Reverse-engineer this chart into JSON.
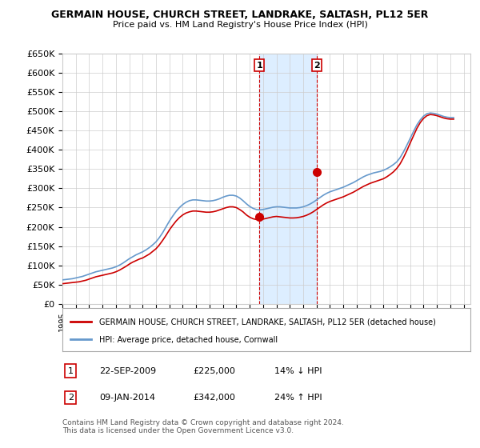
{
  "title": "GERMAIN HOUSE, CHURCH STREET, LANDRAKE, SALTASH, PL12 5ER",
  "subtitle": "Price paid vs. HM Land Registry's House Price Index (HPI)",
  "ylim": [
    0,
    650000
  ],
  "yticks": [
    0,
    50000,
    100000,
    150000,
    200000,
    250000,
    300000,
    350000,
    400000,
    450000,
    500000,
    550000,
    600000,
    650000
  ],
  "ytick_labels": [
    "£0",
    "£50K",
    "£100K",
    "£150K",
    "£200K",
    "£250K",
    "£300K",
    "£350K",
    "£400K",
    "£450K",
    "£500K",
    "£550K",
    "£600K",
    "£650K"
  ],
  "xlim_start": 1995.0,
  "xlim_end": 2025.5,
  "point1_x": 2009.72,
  "point1_y": 225000,
  "point1_label": "1",
  "point1_date": "22-SEP-2009",
  "point1_price": "£225,000",
  "point1_hpi": "14% ↓ HPI",
  "point2_x": 2014.02,
  "point2_y": 342000,
  "point2_label": "2",
  "point2_date": "09-JAN-2014",
  "point2_price": "£342,000",
  "point2_hpi": "24% ↑ HPI",
  "red_line_color": "#cc0000",
  "blue_line_color": "#6699cc",
  "shade_color": "#ddeeff",
  "grid_color": "#cccccc",
  "background_color": "#ffffff",
  "legend_label_red": "GERMAIN HOUSE, CHURCH STREET, LANDRAKE, SALTASH, PL12 5ER (detached house)",
  "legend_label_blue": "HPI: Average price, detached house, Cornwall",
  "footer_text": "Contains HM Land Registry data © Crown copyright and database right 2024.\nThis data is licensed under the Open Government Licence v3.0.",
  "hpi_years": [
    1995.0,
    1995.25,
    1995.5,
    1995.75,
    1996.0,
    1996.25,
    1996.5,
    1996.75,
    1997.0,
    1997.25,
    1997.5,
    1997.75,
    1998.0,
    1998.25,
    1998.5,
    1998.75,
    1999.0,
    1999.25,
    1999.5,
    1999.75,
    2000.0,
    2000.25,
    2000.5,
    2000.75,
    2001.0,
    2001.25,
    2001.5,
    2001.75,
    2002.0,
    2002.25,
    2002.5,
    2002.75,
    2003.0,
    2003.25,
    2003.5,
    2003.75,
    2004.0,
    2004.25,
    2004.5,
    2004.75,
    2005.0,
    2005.25,
    2005.5,
    2005.75,
    2006.0,
    2006.25,
    2006.5,
    2006.75,
    2007.0,
    2007.25,
    2007.5,
    2007.75,
    2008.0,
    2008.25,
    2008.5,
    2008.75,
    2009.0,
    2009.25,
    2009.5,
    2009.75,
    2010.0,
    2010.25,
    2010.5,
    2010.75,
    2011.0,
    2011.25,
    2011.5,
    2011.75,
    2012.0,
    2012.25,
    2012.5,
    2012.75,
    2013.0,
    2013.25,
    2013.5,
    2013.75,
    2014.0,
    2014.25,
    2014.5,
    2014.75,
    2015.0,
    2015.25,
    2015.5,
    2015.75,
    2016.0,
    2016.25,
    2016.5,
    2016.75,
    2017.0,
    2017.25,
    2017.5,
    2017.75,
    2018.0,
    2018.25,
    2018.5,
    2018.75,
    2019.0,
    2019.25,
    2019.5,
    2019.75,
    2020.0,
    2020.25,
    2020.5,
    2020.75,
    2021.0,
    2021.25,
    2021.5,
    2021.75,
    2022.0,
    2022.25,
    2022.5,
    2022.75,
    2023.0,
    2023.25,
    2023.5,
    2023.75,
    2024.0,
    2024.25
  ],
  "hpi_values": [
    62000,
    63000,
    64000,
    65000,
    67000,
    69000,
    71000,
    74000,
    77000,
    80000,
    83000,
    85000,
    87000,
    89000,
    91000,
    93000,
    96000,
    100000,
    105000,
    111000,
    117000,
    122000,
    127000,
    131000,
    135000,
    140000,
    146000,
    153000,
    161000,
    172000,
    185000,
    200000,
    215000,
    228000,
    240000,
    250000,
    258000,
    264000,
    268000,
    270000,
    270000,
    269000,
    268000,
    267000,
    267000,
    268000,
    270000,
    273000,
    277000,
    280000,
    282000,
    282000,
    280000,
    275000,
    268000,
    260000,
    253000,
    248000,
    245000,
    244000,
    245000,
    247000,
    249000,
    251000,
    252000,
    252000,
    251000,
    250000,
    249000,
    249000,
    249000,
    250000,
    252000,
    255000,
    259000,
    264000,
    270000,
    276000,
    282000,
    287000,
    291000,
    294000,
    297000,
    300000,
    303000,
    307000,
    311000,
    315000,
    320000,
    325000,
    330000,
    334000,
    337000,
    340000,
    342000,
    344000,
    347000,
    351000,
    356000,
    362000,
    369000,
    380000,
    395000,
    412000,
    430000,
    448000,
    465000,
    478000,
    488000,
    494000,
    496000,
    495000,
    493000,
    490000,
    487000,
    485000,
    484000,
    484000
  ],
  "price_years": [
    1995.0,
    1995.25,
    1995.5,
    1995.75,
    1996.0,
    1996.25,
    1996.5,
    1996.75,
    1997.0,
    1997.25,
    1997.5,
    1997.75,
    1998.0,
    1998.25,
    1998.5,
    1998.75,
    1999.0,
    1999.25,
    1999.5,
    1999.75,
    2000.0,
    2000.25,
    2000.5,
    2000.75,
    2001.0,
    2001.25,
    2001.5,
    2001.75,
    2002.0,
    2002.25,
    2002.5,
    2002.75,
    2003.0,
    2003.25,
    2003.5,
    2003.75,
    2004.0,
    2004.25,
    2004.5,
    2004.75,
    2005.0,
    2005.25,
    2005.5,
    2005.75,
    2006.0,
    2006.25,
    2006.5,
    2006.75,
    2007.0,
    2007.25,
    2007.5,
    2007.75,
    2008.0,
    2008.25,
    2008.5,
    2008.75,
    2009.0,
    2009.25,
    2009.5,
    2009.75,
    2010.0,
    2010.25,
    2010.5,
    2010.75,
    2011.0,
    2011.25,
    2011.5,
    2011.75,
    2012.0,
    2012.25,
    2012.5,
    2012.75,
    2013.0,
    2013.25,
    2013.5,
    2013.75,
    2014.0,
    2014.25,
    2014.5,
    2014.75,
    2015.0,
    2015.25,
    2015.5,
    2015.75,
    2016.0,
    2016.25,
    2016.5,
    2016.75,
    2017.0,
    2017.25,
    2017.5,
    2017.75,
    2018.0,
    2018.25,
    2018.5,
    2018.75,
    2019.0,
    2019.25,
    2019.5,
    2019.75,
    2020.0,
    2020.25,
    2020.5,
    2020.75,
    2021.0,
    2021.25,
    2021.5,
    2021.75,
    2022.0,
    2022.25,
    2022.5,
    2022.75,
    2023.0,
    2023.25,
    2023.5,
    2023.75,
    2024.0,
    2024.25
  ],
  "price_values": [
    52000,
    53000,
    54000,
    55000,
    56000,
    57000,
    59000,
    61000,
    64000,
    67000,
    70000,
    72000,
    74000,
    76000,
    78000,
    80000,
    83000,
    87000,
    92000,
    97000,
    103000,
    108000,
    112000,
    116000,
    119000,
    124000,
    129000,
    136000,
    143000,
    153000,
    165000,
    178000,
    192000,
    204000,
    215000,
    224000,
    231000,
    236000,
    239000,
    241000,
    241000,
    240000,
    239000,
    238000,
    238000,
    239000,
    241000,
    244000,
    247000,
    250000,
    252000,
    252000,
    250000,
    245000,
    239000,
    231000,
    225000,
    221000,
    219000,
    219000,
    220000,
    222000,
    224000,
    226000,
    227000,
    226000,
    225000,
    224000,
    223000,
    223000,
    223500,
    225000,
    227000,
    230000,
    234000,
    239000,
    245000,
    251000,
    257000,
    262000,
    266000,
    269000,
    272000,
    275000,
    278000,
    282000,
    286000,
    290000,
    295000,
    300000,
    305000,
    309000,
    313000,
    316000,
    319000,
    322000,
    325000,
    330000,
    336000,
    343000,
    352000,
    364000,
    380000,
    398000,
    418000,
    437000,
    456000,
    471000,
    482000,
    489000,
    492000,
    491000,
    489000,
    486000,
    483000,
    481000,
    480000,
    480000
  ]
}
